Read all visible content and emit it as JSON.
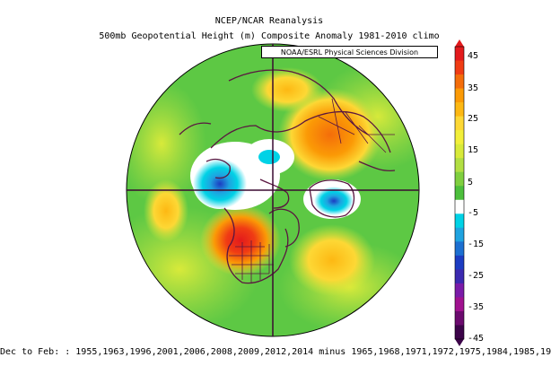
{
  "header": {
    "title_line1": "NCEP/NCAR Reanalysis",
    "title_line2": "500mb Geopotential Height (m) Composite Anomaly 1981-2010 climo",
    "credit": "NOAA/ESRL Physical Sciences Division"
  },
  "colorbar": {
    "labels": [
      "45",
      "35",
      "25",
      "15",
      "5",
      "-5",
      "-15",
      "-25",
      "-35",
      "-45"
    ],
    "colors": [
      "#e31a1c",
      "#f03c14",
      "#f46d0a",
      "#fb9a06",
      "#fdb813",
      "#fdd835",
      "#f2ef3a",
      "#d8ea3a",
      "#b2df43",
      "#7fcf3f",
      "#4cbf3c",
      "#ffffff",
      "#00d2e6",
      "#1fa3e0",
      "#1c6fd1",
      "#1c3cc2",
      "#3b2ab0",
      "#7a1ba8",
      "#a0118f",
      "#6b0a6e",
      "#3c0449"
    ]
  },
  "map": {
    "projection": "north-polar-stereographic",
    "background_color": "#5dc844",
    "anomaly_features": [
      {
        "name": "positive-anomaly-eurasia",
        "sign": "positive",
        "max_m": 35
      },
      {
        "name": "positive-anomaly-north-atlantic",
        "sign": "positive",
        "max_m": 45
      },
      {
        "name": "positive-anomaly-north-pacific",
        "sign": "positive",
        "max_m": 25
      },
      {
        "name": "negative-anomaly-siberia",
        "sign": "negative",
        "max_m": -15
      },
      {
        "name": "negative-anomaly-greenland-sea",
        "sign": "negative",
        "max_m": -15
      },
      {
        "name": "negative-anomaly-arctic-ocean",
        "sign": "negative",
        "max_m": -5
      }
    ]
  },
  "footer": {
    "text": "Dec to Feb: : 1955,1963,1996,2001,2006,2008,2009,2012,2014 minus 1965,1968,1971,1972,1975,1984,1985,19"
  }
}
